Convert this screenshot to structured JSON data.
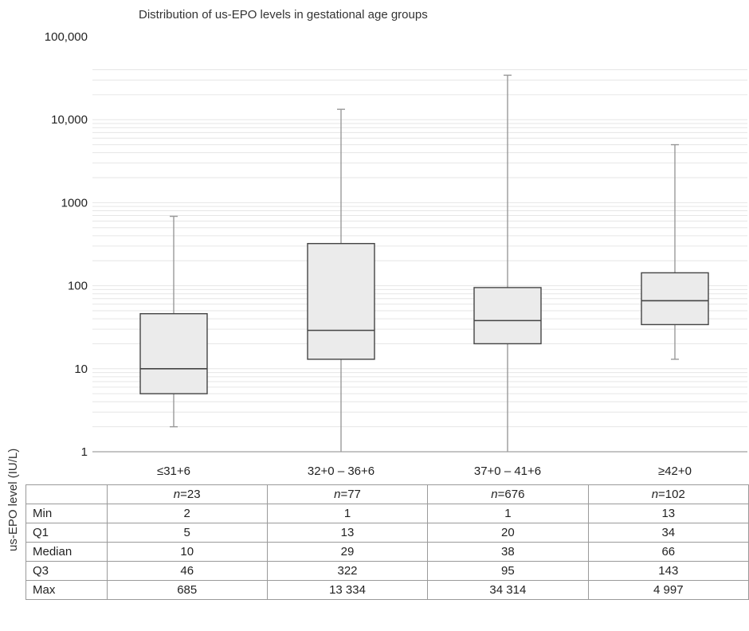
{
  "chart_data": {
    "type": "boxplot",
    "title": "Distribution of us-EPO levels in gestational age groups",
    "ylabel": "us-EPO level (IU/L)",
    "xlabel": "",
    "y_scale": "log",
    "ylim": [
      1,
      100000
    ],
    "y_ticks": [
      1,
      10,
      100,
      1000,
      10000,
      100000
    ],
    "y_tick_labels": [
      "1",
      "10",
      "100",
      "1000",
      "10,000",
      "100,000"
    ],
    "categories": [
      "≤31+6",
      "32+0 – 36+6",
      "37+0 – 41+6",
      "≥42+0"
    ],
    "grid": "minor horizontal gridlines",
    "boxes": [
      {
        "category": "≤31+6",
        "n": 23,
        "min": 2,
        "q1": 5,
        "median": 10,
        "q3": 46,
        "max": 685
      },
      {
        "category": "32+0 – 36+6",
        "n": 77,
        "min": 1,
        "q1": 13,
        "median": 29,
        "q3": 322,
        "max": 13334
      },
      {
        "category": "37+0 – 41+6",
        "n": 676,
        "min": 1,
        "q1": 20,
        "median": 38,
        "q3": 95,
        "max": 34314
      },
      {
        "category": "≥42+0",
        "n": 102,
        "min": 13,
        "q1": 34,
        "median": 66,
        "q3": 143,
        "max": 4997
      }
    ]
  },
  "table": {
    "n_prefix": "n",
    "n_values": [
      "=23",
      "=77",
      "=676",
      "=102"
    ],
    "rows": [
      {
        "label": "Min",
        "values": [
          "2",
          "1",
          "1",
          "13"
        ]
      },
      {
        "label": "Q1",
        "values": [
          "5",
          "13",
          "20",
          "34"
        ]
      },
      {
        "label": "Median",
        "values": [
          "10",
          "29",
          "38",
          "66"
        ]
      },
      {
        "label": "Q3",
        "values": [
          "46",
          "322",
          "95",
          "143"
        ]
      },
      {
        "label": "Max",
        "values": [
          "685",
          "13 334",
          "34 314",
          "4 997"
        ]
      }
    ]
  },
  "colors": {
    "box_fill": "#ebebeb",
    "box_stroke": "#444444",
    "whisker": "#999999",
    "grid": "#e6e6e6",
    "axis": "#888888"
  }
}
